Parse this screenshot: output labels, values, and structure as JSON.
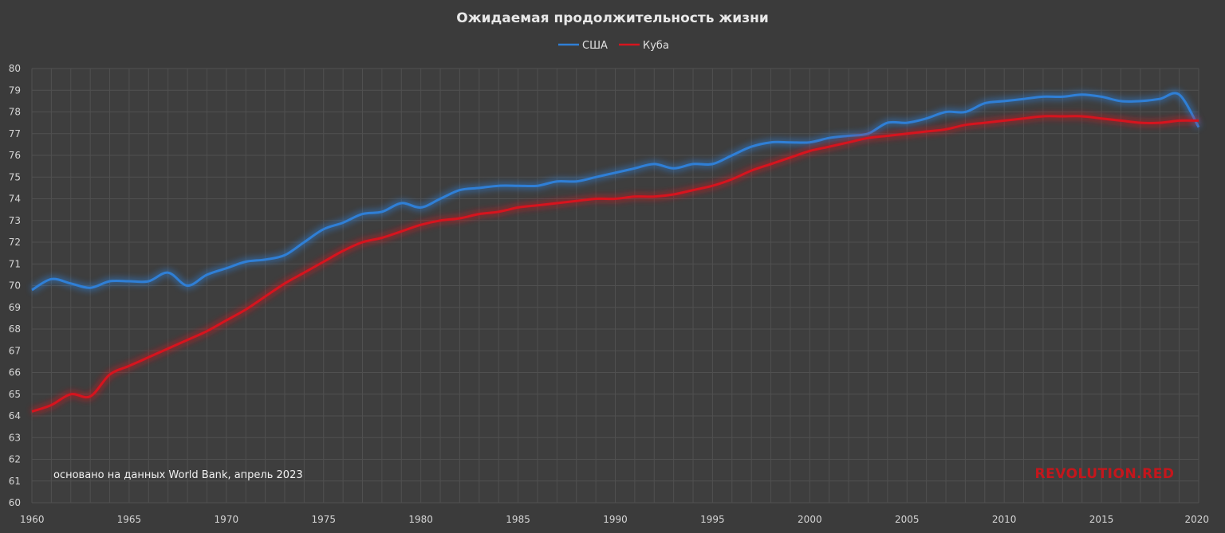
{
  "chart_data": {
    "type": "line",
    "title": "Ожидаемая продолжительность жизни",
    "xlabel": "",
    "ylabel": "",
    "xlim": [
      1960,
      2020
    ],
    "ylim": [
      60,
      80
    ],
    "x_ticks": [
      1960,
      1965,
      1970,
      1975,
      1980,
      1985,
      1990,
      1995,
      2000,
      2005,
      2010,
      2015,
      2020
    ],
    "y_ticks": [
      60,
      61,
      62,
      63,
      64,
      65,
      66,
      67,
      68,
      69,
      70,
      71,
      72,
      73,
      74,
      75,
      76,
      77,
      78,
      79,
      80
    ],
    "grid": true,
    "legend_position": "top-center",
    "x": [
      1960,
      1961,
      1962,
      1963,
      1964,
      1965,
      1966,
      1967,
      1968,
      1969,
      1970,
      1971,
      1972,
      1973,
      1974,
      1975,
      1976,
      1977,
      1978,
      1979,
      1980,
      1981,
      1982,
      1983,
      1984,
      1985,
      1986,
      1987,
      1988,
      1989,
      1990,
      1991,
      1992,
      1993,
      1994,
      1995,
      1996,
      1997,
      1998,
      1999,
      2000,
      2001,
      2002,
      2003,
      2004,
      2005,
      2006,
      2007,
      2008,
      2009,
      2010,
      2011,
      2012,
      2013,
      2014,
      2015,
      2016,
      2017,
      2018,
      2019,
      2020
    ],
    "series": [
      {
        "name": "США",
        "color": "#2f7fd6",
        "values": [
          69.8,
          70.3,
          70.1,
          69.9,
          70.2,
          70.2,
          70.2,
          70.6,
          70.0,
          70.5,
          70.8,
          71.1,
          71.2,
          71.4,
          72.0,
          72.6,
          72.9,
          73.3,
          73.4,
          73.8,
          73.6,
          74.0,
          74.4,
          74.5,
          74.6,
          74.6,
          74.6,
          74.8,
          74.8,
          75.0,
          75.2,
          75.4,
          75.6,
          75.4,
          75.6,
          75.6,
          76.0,
          76.4,
          76.6,
          76.6,
          76.6,
          76.8,
          76.9,
          77.0,
          77.5,
          77.5,
          77.7,
          78.0,
          78.0,
          78.4,
          78.5,
          78.6,
          78.7,
          78.7,
          78.8,
          78.7,
          78.5,
          78.5,
          78.6,
          78.8,
          77.3
        ]
      },
      {
        "name": "Куба",
        "color": "#d6141e",
        "values": [
          64.2,
          64.5,
          65.0,
          64.9,
          65.9,
          66.3,
          66.7,
          67.1,
          67.5,
          67.9,
          68.4,
          68.9,
          69.5,
          70.1,
          70.6,
          71.1,
          71.6,
          72.0,
          72.2,
          72.5,
          72.8,
          73.0,
          73.1,
          73.3,
          73.4,
          73.6,
          73.7,
          73.8,
          73.9,
          74.0,
          74.0,
          74.1,
          74.1,
          74.2,
          74.4,
          74.6,
          74.9,
          75.3,
          75.6,
          75.9,
          76.2,
          76.4,
          76.6,
          76.8,
          76.9,
          77.0,
          77.1,
          77.2,
          77.4,
          77.5,
          77.6,
          77.7,
          77.8,
          77.8,
          77.8,
          77.7,
          77.6,
          77.5,
          77.5,
          77.6,
          77.6
        ]
      }
    ],
    "annotations": [
      {
        "text": "основано на данных World Bank, апрель 2023",
        "position": "bottom-left"
      }
    ],
    "watermark": "REVOLUTION.RED"
  }
}
